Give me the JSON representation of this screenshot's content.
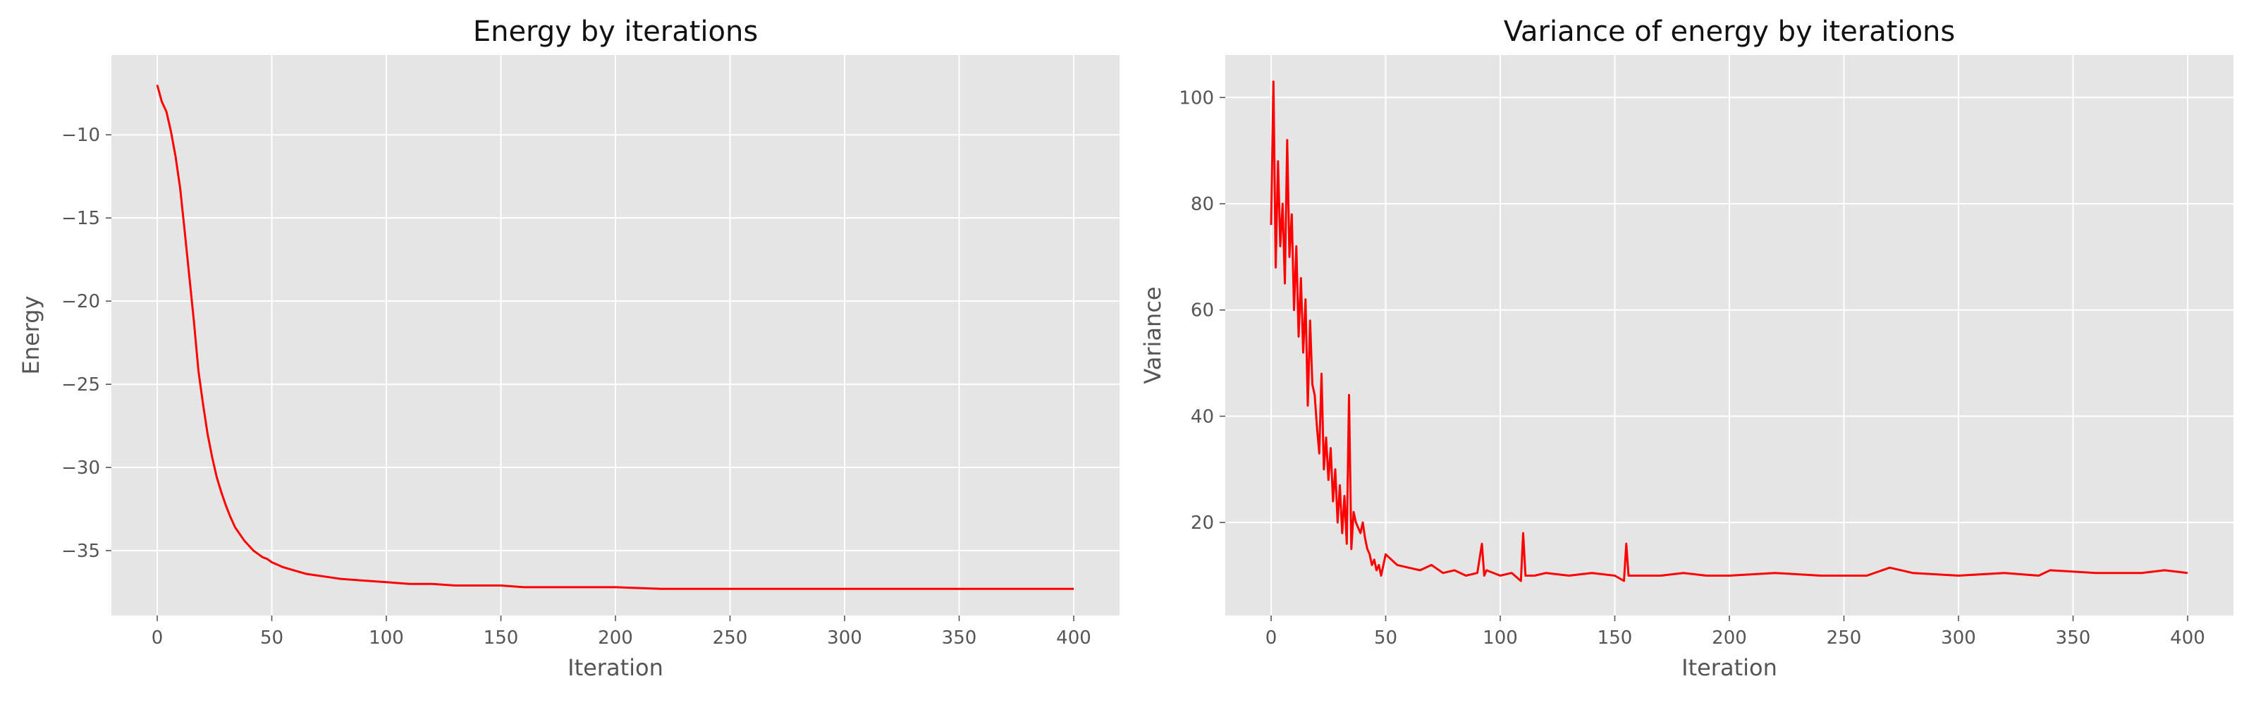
{
  "chart_data": [
    {
      "type": "line",
      "title": "Energy by iterations",
      "xlabel": "Iteration",
      "ylabel": "Energy",
      "xlim": [
        -20,
        420
      ],
      "ylim": [
        -38.9,
        -5.2
      ],
      "xticks": [
        0,
        50,
        100,
        150,
        200,
        250,
        300,
        350,
        400
      ],
      "yticks": [
        -35,
        -30,
        -25,
        -20,
        -15,
        -10
      ],
      "grid": true,
      "color": "#ff0000",
      "series": [
        {
          "x": [
            0,
            2,
            4,
            6,
            8,
            10,
            12,
            14,
            16,
            18,
            20,
            22,
            24,
            26,
            28,
            30,
            32,
            34,
            36,
            38,
            40,
            42,
            44,
            46,
            48,
            50,
            55,
            60,
            65,
            70,
            75,
            80,
            90,
            100,
            110,
            120,
            130,
            140,
            150,
            160,
            170,
            180,
            190,
            200,
            220,
            240,
            260,
            280,
            300,
            320,
            340,
            360,
            380,
            400
          ],
          "y": [
            -7.0,
            -8.0,
            -8.6,
            -9.8,
            -11.3,
            -13.2,
            -15.8,
            -18.5,
            -21.2,
            -24.2,
            -26.2,
            -28.0,
            -29.4,
            -30.6,
            -31.5,
            -32.3,
            -33.0,
            -33.6,
            -34.0,
            -34.4,
            -34.7,
            -35.0,
            -35.2,
            -35.4,
            -35.5,
            -35.7,
            -36.0,
            -36.2,
            -36.4,
            -36.5,
            -36.6,
            -36.7,
            -36.8,
            -36.9,
            -37.0,
            -37.0,
            -37.1,
            -37.1,
            -37.1,
            -37.2,
            -37.2,
            -37.2,
            -37.2,
            -37.2,
            -37.3,
            -37.3,
            -37.3,
            -37.3,
            -37.3,
            -37.3,
            -37.3,
            -37.3,
            -37.3,
            -37.3
          ]
        }
      ]
    },
    {
      "type": "line",
      "title": "Variance of energy by iterations",
      "xlabel": "Iteration",
      "ylabel": "Variance",
      "xlim": [
        -20,
        420
      ],
      "ylim": [
        2.5,
        108
      ],
      "xticks": [
        0,
        50,
        100,
        150,
        200,
        250,
        300,
        350,
        400
      ],
      "yticks": [
        20,
        40,
        60,
        80,
        100
      ],
      "grid": true,
      "color": "#ff0000",
      "series": [
        {
          "x": [
            0,
            1,
            2,
            3,
            4,
            5,
            6,
            7,
            8,
            9,
            10,
            11,
            12,
            13,
            14,
            15,
            16,
            17,
            18,
            19,
            20,
            21,
            22,
            23,
            24,
            25,
            26,
            27,
            28,
            29,
            30,
            31,
            32,
            33,
            34,
            35,
            36,
            37,
            38,
            39,
            40,
            41,
            42,
            43,
            44,
            45,
            46,
            47,
            48,
            50,
            55,
            60,
            65,
            70,
            75,
            80,
            85,
            90,
            92,
            93,
            94,
            100,
            105,
            109,
            110,
            111,
            115,
            120,
            130,
            140,
            150,
            154,
            155,
            156,
            160,
            170,
            180,
            190,
            200,
            220,
            240,
            260,
            270,
            280,
            300,
            320,
            335,
            340,
            360,
            380,
            390,
            400
          ],
          "y": [
            76,
            103,
            68,
            88,
            72,
            80,
            65,
            92,
            70,
            78,
            60,
            72,
            55,
            66,
            52,
            62,
            42,
            58,
            46,
            44,
            38,
            33,
            48,
            30,
            36,
            28,
            34,
            24,
            30,
            20,
            27,
            18,
            25,
            16,
            44,
            15,
            22,
            20,
            19,
            18,
            20,
            17,
            15,
            14,
            12,
            13,
            11,
            12,
            10,
            14,
            12,
            11.5,
            11,
            12,
            10.5,
            11,
            10,
            10.5,
            16,
            10,
            11,
            10,
            10.5,
            9,
            18,
            10,
            10,
            10.5,
            10,
            10.5,
            10,
            9,
            16,
            10,
            10,
            10,
            10.5,
            10,
            10,
            10.5,
            10,
            10,
            11.5,
            10.5,
            10,
            10.5,
            10,
            11,
            10.5,
            10.5,
            11,
            10.5
          ]
        }
      ]
    }
  ]
}
